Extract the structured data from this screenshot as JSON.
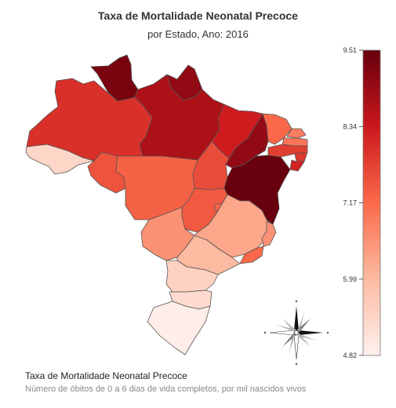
{
  "title": "Taxa de Mortalidade Neonatal Precoce",
  "subtitle": "por Estado, Ano: 2016",
  "caption": {
    "title": "Taxa de Mortalidade Neonatal Precoce",
    "subtitle": "Número de óbitos de 0 a 6 dias de vida completos, por mil nascidos vivos"
  },
  "chart_data": {
    "type": "choropleth",
    "legend": {
      "min": 4.82,
      "max": 9.51,
      "ticks": [
        "9.51",
        "8.34",
        "7.17",
        "5.99",
        "4.82"
      ],
      "color_low": "#fff1ee",
      "color_high": "#67000d",
      "placement": "right"
    },
    "regions": [
      {
        "id": "AC",
        "value": 5.4
      },
      {
        "id": "AM",
        "value": 8.0
      },
      {
        "id": "RR",
        "value": 9.3
      },
      {
        "id": "PA",
        "value": 8.7
      },
      {
        "id": "AP",
        "value": 9.0
      },
      {
        "id": "MA",
        "value": 8.3
      },
      {
        "id": "TO",
        "value": 7.6
      },
      {
        "id": "RO",
        "value": 7.5
      },
      {
        "id": "MT",
        "value": 7.3
      },
      {
        "id": "PI",
        "value": 9.0
      },
      {
        "id": "CE",
        "value": 7.2
      },
      {
        "id": "RN",
        "value": 6.9
      },
      {
        "id": "PB",
        "value": 7.0
      },
      {
        "id": "PE",
        "value": 7.8
      },
      {
        "id": "AL",
        "value": 7.9
      },
      {
        "id": "SE",
        "value": 8.2
      },
      {
        "id": "BA",
        "value": 9.5
      },
      {
        "id": "GO",
        "value": 7.4
      },
      {
        "id": "DF",
        "value": 7.2
      },
      {
        "id": "MS",
        "value": 6.6
      },
      {
        "id": "MG",
        "value": 6.3
      },
      {
        "id": "ES",
        "value": 6.6
      },
      {
        "id": "RJ",
        "value": 7.2
      },
      {
        "id": "SP",
        "value": 6.0
      },
      {
        "id": "PR",
        "value": 5.5
      },
      {
        "id": "SC",
        "value": 5.3
      },
      {
        "id": "RS",
        "value": 4.9
      }
    ]
  }
}
